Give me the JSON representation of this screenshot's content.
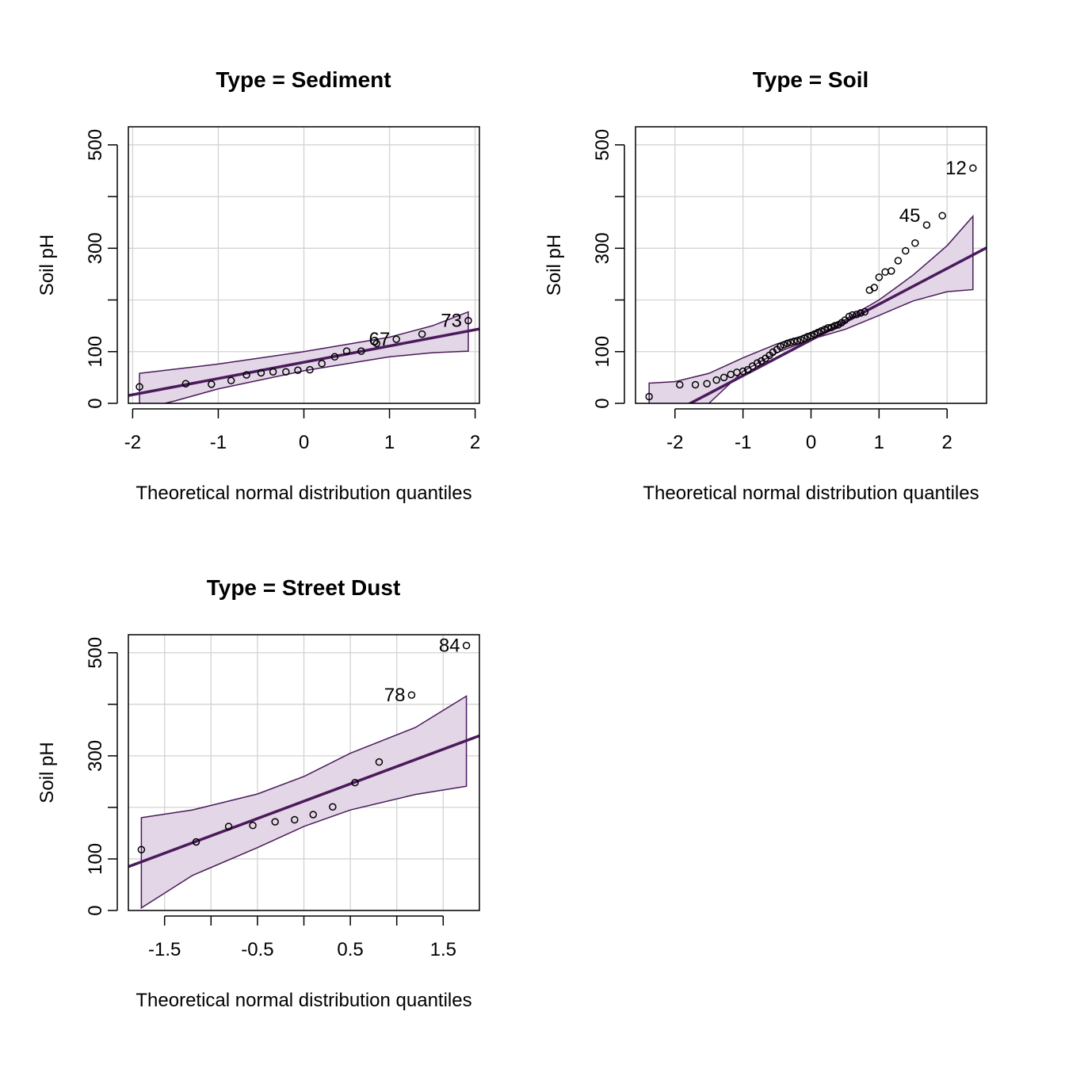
{
  "chart_data": [
    {
      "type": "scatter",
      "title": "Type = Sediment",
      "xlabel": "Theoretical normal distribution quantiles",
      "ylabel": "Soil pH",
      "xlim": [
        -2.05,
        2.05
      ],
      "ylim": [
        0,
        535
      ],
      "xticks": [
        -2,
        -1,
        0,
        1,
        2
      ],
      "xtick_labels": [
        "-2",
        "-1",
        "0",
        "1",
        "2"
      ],
      "yticks": [
        0,
        100,
        300,
        500
      ],
      "yminor": [
        200,
        400
      ],
      "grid": true,
      "points": [
        {
          "x": -1.92,
          "y": 32
        },
        {
          "x": -1.38,
          "y": 38
        },
        {
          "x": -1.08,
          "y": 37
        },
        {
          "x": -0.85,
          "y": 44
        },
        {
          "x": -0.67,
          "y": 55
        },
        {
          "x": -0.5,
          "y": 59
        },
        {
          "x": -0.36,
          "y": 61
        },
        {
          "x": -0.21,
          "y": 61
        },
        {
          "x": -0.07,
          "y": 64
        },
        {
          "x": 0.07,
          "y": 65
        },
        {
          "x": 0.21,
          "y": 77
        },
        {
          "x": 0.36,
          "y": 90
        },
        {
          "x": 0.5,
          "y": 101
        },
        {
          "x": 0.67,
          "y": 101
        },
        {
          "x": 0.85,
          "y": 116
        },
        {
          "x": 1.08,
          "y": 124
        },
        {
          "x": 1.38,
          "y": 134
        },
        {
          "x": 1.92,
          "y": 160
        }
      ],
      "labels": [
        {
          "text": "67",
          "x": 1.08,
          "y": 124
        },
        {
          "text": "73",
          "x": 1.92,
          "y": 160
        }
      ],
      "line": {
        "x0": -2.05,
        "y0": 15,
        "x1": 2.05,
        "y1": 144
      },
      "band": {
        "upper": [
          [
            -1.92,
            58
          ],
          [
            -1.0,
            76
          ],
          [
            0.0,
            100
          ],
          [
            1.0,
            128
          ],
          [
            1.5,
            150
          ],
          [
            1.92,
            177
          ]
        ],
        "lower": [
          [
            1.92,
            101
          ],
          [
            1.5,
            98
          ],
          [
            1.0,
            90
          ],
          [
            0.0,
            63
          ],
          [
            -1.0,
            28
          ],
          [
            -1.5,
            5
          ],
          [
            -1.92,
            -12
          ]
        ]
      }
    },
    {
      "type": "scatter",
      "title": "Type = Soil",
      "xlabel": "Theoretical normal distribution quantiles",
      "ylabel": "Soil pH",
      "xlim": [
        -2.58,
        2.58
      ],
      "ylim": [
        0,
        535
      ],
      "xticks": [
        -2,
        -1,
        0,
        1,
        2
      ],
      "xtick_labels": [
        "-2",
        "-1",
        "0",
        "1",
        "2"
      ],
      "yticks": [
        0,
        100,
        300,
        500
      ],
      "yminor": [
        200,
        400
      ],
      "grid": true,
      "points": [
        {
          "x": -2.38,
          "y": 13
        },
        {
          "x": -1.93,
          "y": 36
        },
        {
          "x": -1.7,
          "y": 36
        },
        {
          "x": -1.53,
          "y": 38
        },
        {
          "x": -1.39,
          "y": 45
        },
        {
          "x": -1.28,
          "y": 50
        },
        {
          "x": -1.18,
          "y": 56
        },
        {
          "x": -1.09,
          "y": 60
        },
        {
          "x": -1.0,
          "y": 62
        },
        {
          "x": -0.93,
          "y": 65
        },
        {
          "x": -0.86,
          "y": 72
        },
        {
          "x": -0.79,
          "y": 78
        },
        {
          "x": -0.73,
          "y": 82
        },
        {
          "x": -0.67,
          "y": 87
        },
        {
          "x": -0.61,
          "y": 93
        },
        {
          "x": -0.56,
          "y": 99
        },
        {
          "x": -0.5,
          "y": 104
        },
        {
          "x": -0.45,
          "y": 110
        },
        {
          "x": -0.4,
          "y": 113
        },
        {
          "x": -0.35,
          "y": 116
        },
        {
          "x": -0.3,
          "y": 118
        },
        {
          "x": -0.25,
          "y": 120
        },
        {
          "x": -0.2,
          "y": 121
        },
        {
          "x": -0.15,
          "y": 123
        },
        {
          "x": -0.1,
          "y": 126
        },
        {
          "x": -0.05,
          "y": 129
        },
        {
          "x": 0.0,
          "y": 131
        },
        {
          "x": 0.05,
          "y": 134
        },
        {
          "x": 0.1,
          "y": 137
        },
        {
          "x": 0.15,
          "y": 140
        },
        {
          "x": 0.2,
          "y": 143
        },
        {
          "x": 0.25,
          "y": 146
        },
        {
          "x": 0.3,
          "y": 147
        },
        {
          "x": 0.35,
          "y": 150
        },
        {
          "x": 0.4,
          "y": 152
        },
        {
          "x": 0.45,
          "y": 156
        },
        {
          "x": 0.5,
          "y": 161
        },
        {
          "x": 0.56,
          "y": 168
        },
        {
          "x": 0.61,
          "y": 171
        },
        {
          "x": 0.67,
          "y": 172
        },
        {
          "x": 0.73,
          "y": 175
        },
        {
          "x": 0.79,
          "y": 177
        },
        {
          "x": 0.86,
          "y": 219
        },
        {
          "x": 0.93,
          "y": 224
        },
        {
          "x": 1.0,
          "y": 244
        },
        {
          "x": 1.09,
          "y": 254
        },
        {
          "x": 1.18,
          "y": 256
        },
        {
          "x": 1.28,
          "y": 276
        },
        {
          "x": 1.39,
          "y": 295
        },
        {
          "x": 1.53,
          "y": 310
        },
        {
          "x": 1.7,
          "y": 345
        },
        {
          "x": 1.93,
          "y": 363
        },
        {
          "x": 2.38,
          "y": 455
        }
      ],
      "labels": [
        {
          "text": "12",
          "x": 2.38,
          "y": 455
        },
        {
          "text": "45",
          "x": 1.7,
          "y": 363
        }
      ],
      "line": {
        "x0": -1.92,
        "y0": -10,
        "x1": 2.58,
        "y1": 301
      },
      "band": {
        "upper": [
          [
            -2.38,
            39
          ],
          [
            -2.0,
            42
          ],
          [
            -1.5,
            58
          ],
          [
            -1.0,
            88
          ],
          [
            -0.5,
            115
          ],
          [
            0.0,
            136
          ],
          [
            0.5,
            162
          ],
          [
            1.0,
            200
          ],
          [
            1.5,
            248
          ],
          [
            2.0,
            305
          ],
          [
            2.38,
            362
          ]
        ],
        "lower": [
          [
            2.38,
            220
          ],
          [
            2.0,
            216
          ],
          [
            1.5,
            198
          ],
          [
            1.0,
            170
          ],
          [
            0.5,
            143
          ],
          [
            0.0,
            124
          ],
          [
            -0.5,
            98
          ],
          [
            -1.0,
            62
          ],
          [
            -1.5,
            0
          ],
          [
            -2.0,
            -42
          ],
          [
            -2.38,
            -30
          ]
        ]
      }
    },
    {
      "type": "scatter",
      "title": "Type = Street Dust",
      "xlabel": "Theoretical normal distribution quantiles",
      "ylabel": "Soil pH",
      "xlim": [
        -1.89,
        1.89
      ],
      "ylim": [
        0,
        535
      ],
      "xticks": [
        -1.5,
        -1.0,
        -0.5,
        0.0,
        0.5,
        1.0,
        1.5
      ],
      "xtick_labels": [
        "-1.5",
        "",
        "-0.5",
        "",
        "0.5",
        "",
        "1.5"
      ],
      "yticks": [
        0,
        100,
        300,
        500
      ],
      "yminor": [
        200,
        400
      ],
      "grid": true,
      "points": [
        {
          "x": -1.75,
          "y": 118
        },
        {
          "x": -1.16,
          "y": 133
        },
        {
          "x": -0.81,
          "y": 163
        },
        {
          "x": -0.55,
          "y": 165
        },
        {
          "x": -0.31,
          "y": 172
        },
        {
          "x": -0.1,
          "y": 176
        },
        {
          "x": 0.1,
          "y": 186
        },
        {
          "x": 0.31,
          "y": 201
        },
        {
          "x": 0.55,
          "y": 248
        },
        {
          "x": 0.81,
          "y": 288
        },
        {
          "x": 1.16,
          "y": 418
        },
        {
          "x": 1.75,
          "y": 514
        }
      ],
      "labels": [
        {
          "text": "78",
          "x": 1.16,
          "y": 418
        },
        {
          "text": "84",
          "x": 1.75,
          "y": 514
        }
      ],
      "line": {
        "x0": -1.89,
        "y0": 85,
        "x1": 1.89,
        "y1": 339
      },
      "band": {
        "upper": [
          [
            -1.75,
            180
          ],
          [
            -1.2,
            195
          ],
          [
            -0.5,
            226
          ],
          [
            0.0,
            260
          ],
          [
            0.5,
            305
          ],
          [
            1.2,
            355
          ],
          [
            1.75,
            416
          ]
        ],
        "lower": [
          [
            1.75,
            241
          ],
          [
            1.2,
            225
          ],
          [
            0.5,
            195
          ],
          [
            0.0,
            163
          ],
          [
            -0.5,
            122
          ],
          [
            -1.2,
            68
          ],
          [
            -1.75,
            5
          ]
        ]
      }
    }
  ],
  "colors": {
    "line": "#4a1a5c",
    "band_fill": "#e3d6e6",
    "band_edge": "#4a1a5c",
    "grid": "#d3d3d3",
    "points": "#000000"
  }
}
